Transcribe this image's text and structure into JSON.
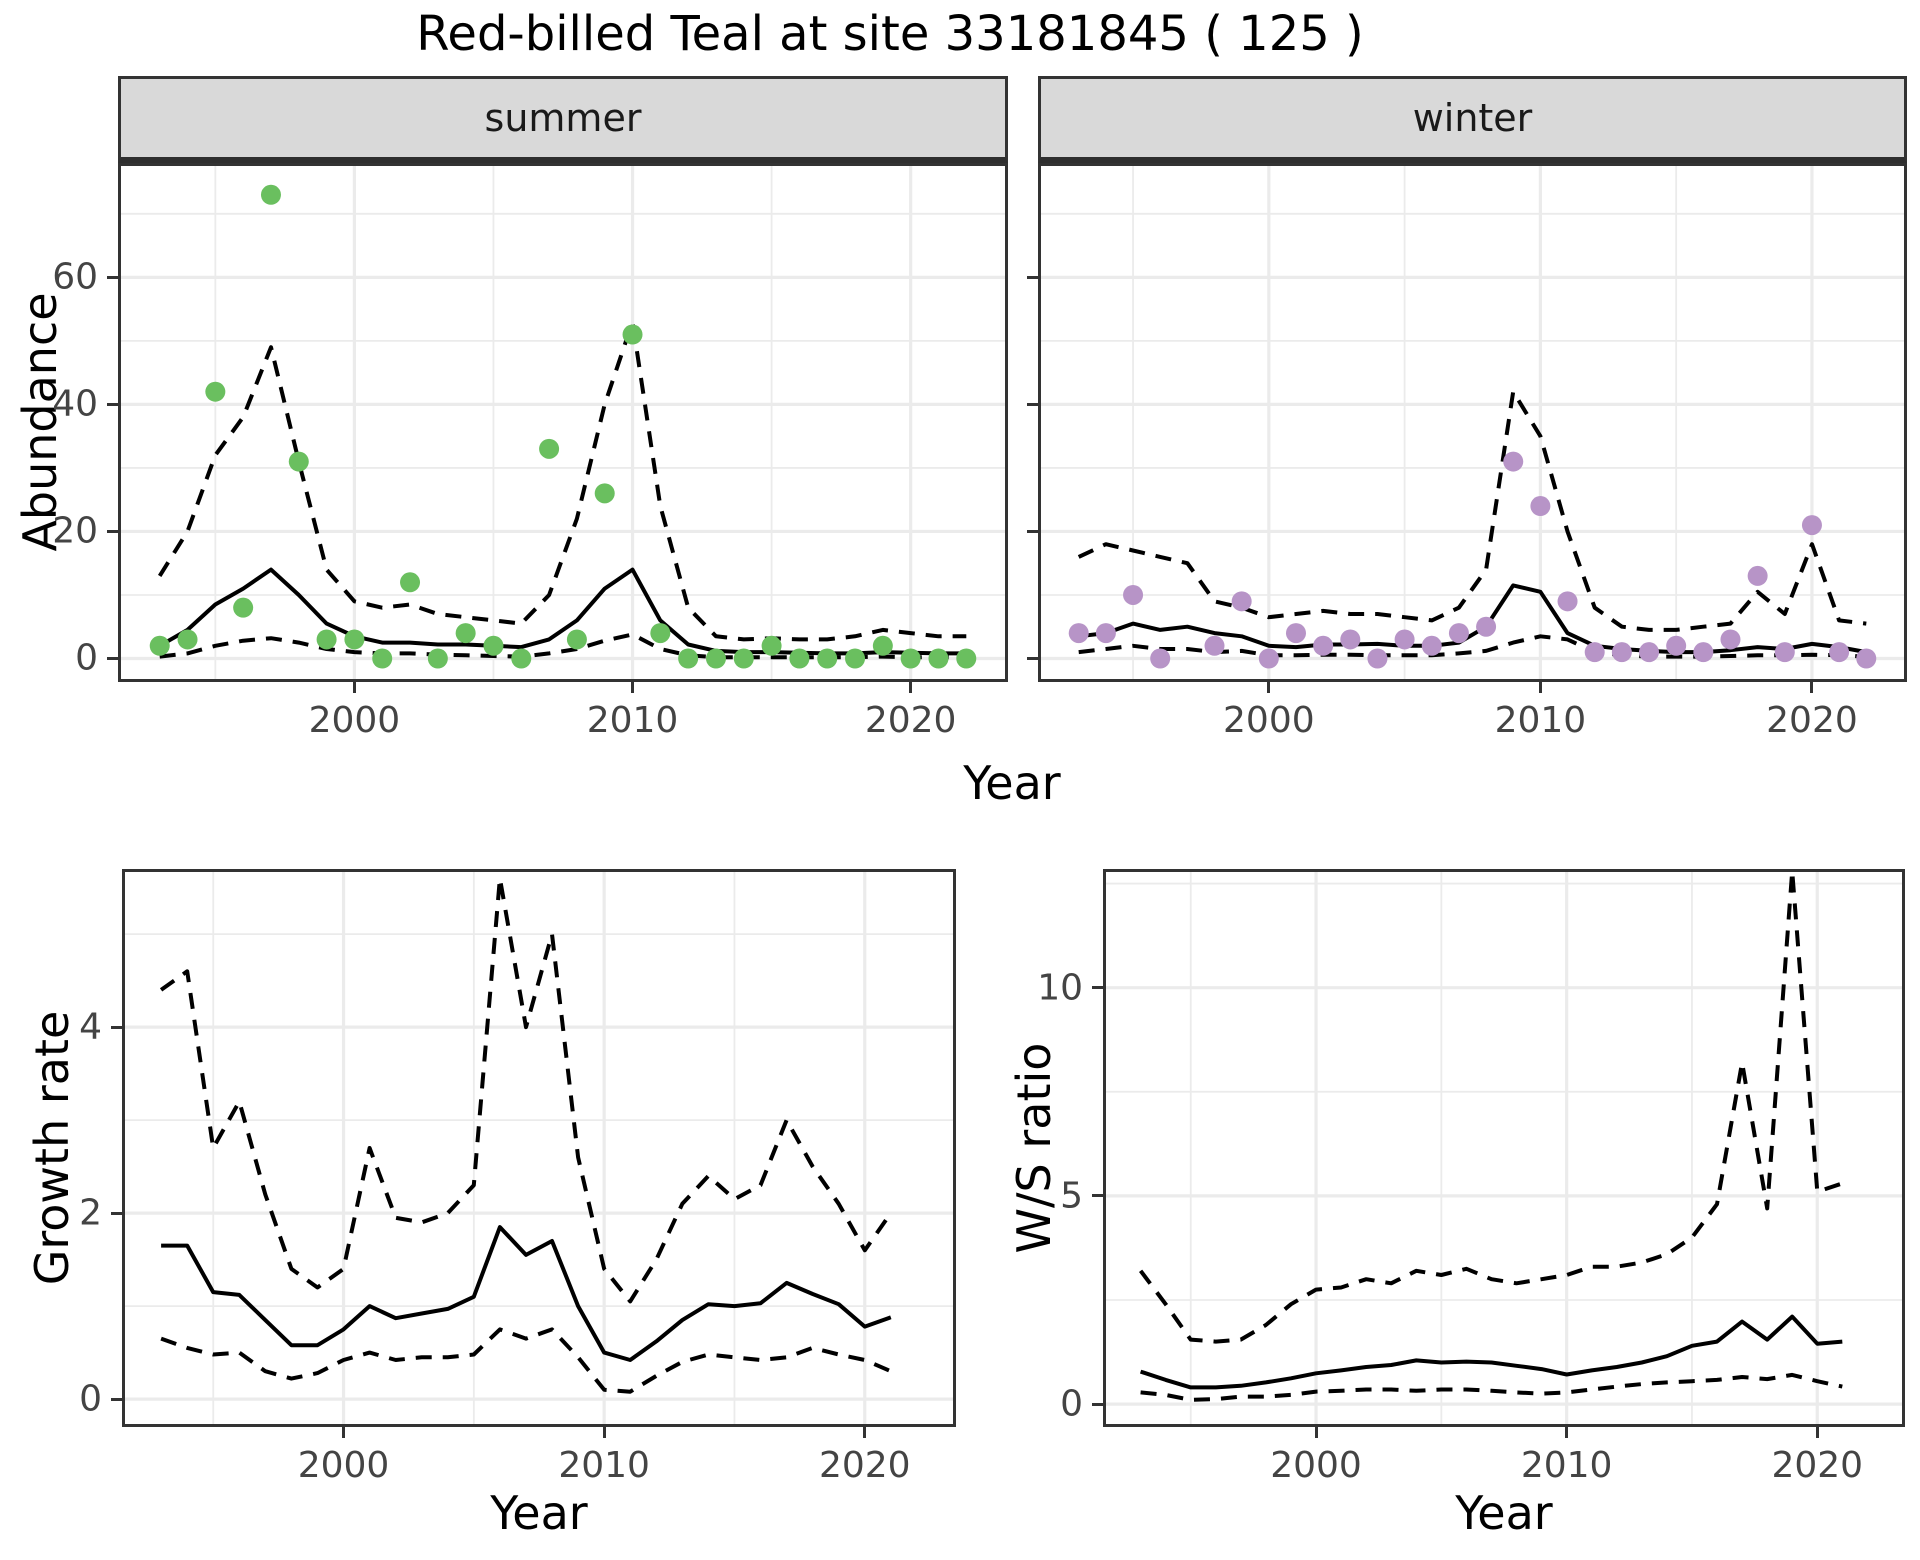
{
  "page": {
    "title": "Red-billed Teal at site 33181845 ( 125 )",
    "background": "#ffffff"
  },
  "colors": {
    "summer_point": "#6abf5f",
    "winter_point": "#b794c7",
    "line": "#000000",
    "strip_bg": "#d9d9d9",
    "grid": "#ebebeb",
    "axis_text": "#444444",
    "panel_border": "#333333"
  },
  "chart_data": [
    {
      "id": "abundance-summer",
      "type": "line",
      "facet": "summer",
      "xlabel": "Year",
      "ylabel": "Abundance",
      "xlim": [
        1991.5,
        2023.5
      ],
      "ylim": [
        -3.7,
        78.0
      ],
      "xticks_major": [
        2000,
        2010,
        2020
      ],
      "xticks_minor": [
        1995,
        2005,
        2015
      ],
      "yticks_major": [
        0,
        20,
        40,
        60
      ],
      "yticks_minor": [
        10,
        30,
        50,
        70
      ],
      "grid": true,
      "legend": "none",
      "x": [
        1993,
        1994,
        1995,
        1996,
        1997,
        1998,
        1999,
        2000,
        2001,
        2002,
        2003,
        2004,
        2005,
        2006,
        2007,
        2008,
        2009,
        2010,
        2011,
        2012,
        2013,
        2014,
        2015,
        2016,
        2017,
        2018,
        2019,
        2020,
        2021,
        2022
      ],
      "points": {
        "name": "observed counts",
        "color": "#6abf5f",
        "values": [
          2,
          3,
          42,
          8,
          73,
          31,
          3,
          3,
          0,
          12,
          0,
          4,
          2,
          0,
          33,
          3,
          26,
          51,
          4,
          0,
          0,
          0,
          2,
          0,
          0,
          0,
          2,
          0,
          0,
          0
        ]
      },
      "series": [
        {
          "name": "upper 95% CI",
          "style": "dashed",
          "values": [
            13,
            20,
            32,
            38,
            49,
            31,
            14,
            9,
            8,
            8.5,
            7,
            6.5,
            6,
            5.5,
            10,
            22,
            40,
            53,
            24,
            8,
            3.5,
            3,
            3.2,
            3,
            3,
            3.5,
            4.5,
            4,
            3.5,
            3.5
          ]
        },
        {
          "name": "lower 95% CI",
          "style": "dashed",
          "values": [
            0.3,
            0.8,
            2,
            2.8,
            3.2,
            2.5,
            1.5,
            1,
            0.8,
            0.8,
            0.6,
            0.5,
            0.4,
            0.3,
            0.8,
            1.5,
            2.8,
            3.8,
            1.5,
            0.5,
            0.2,
            0.2,
            0.2,
            0.2,
            0.2,
            0.2,
            0.3,
            0.2,
            0.2,
            0.2
          ]
        },
        {
          "name": "fitted abundance",
          "style": "solid",
          "values": [
            2,
            4.5,
            8.5,
            11,
            14,
            10,
            5.5,
            3.5,
            2.5,
            2.5,
            2.2,
            2.2,
            2,
            1.8,
            3,
            6,
            11,
            14,
            6,
            2.2,
            1.2,
            1,
            1,
            0.9,
            0.8,
            0.8,
            1,
            0.9,
            0.8,
            0.8
          ]
        }
      ]
    },
    {
      "id": "abundance-winter",
      "type": "line",
      "facet": "winter",
      "xlabel": "Year",
      "ylabel": "Abundance",
      "xlim": [
        1991.5,
        2023.5
      ],
      "ylim": [
        -3.7,
        78.0
      ],
      "xticks_major": [
        2000,
        2010,
        2020
      ],
      "xticks_minor": [
        1995,
        2005,
        2015
      ],
      "yticks_major": [
        0,
        20,
        40,
        60
      ],
      "yticks_minor": [
        10,
        30,
        50,
        70
      ],
      "grid": true,
      "legend": "none",
      "x": [
        1993,
        1994,
        1995,
        1996,
        1997,
        1998,
        1999,
        2000,
        2001,
        2002,
        2003,
        2004,
        2005,
        2006,
        2007,
        2008,
        2009,
        2010,
        2011,
        2012,
        2013,
        2014,
        2015,
        2016,
        2017,
        2018,
        2019,
        2020,
        2021,
        2022
      ],
      "points": {
        "name": "observed counts",
        "color": "#b794c7",
        "values": [
          4,
          4,
          10,
          0,
          null,
          2,
          9,
          0,
          4,
          2,
          3,
          0,
          3,
          2,
          4,
          5,
          31,
          24,
          9,
          1,
          1,
          1,
          2,
          1,
          3,
          13,
          1,
          21,
          1,
          0
        ]
      },
      "series": [
        {
          "name": "upper 95% CI",
          "style": "dashed",
          "values": [
            16,
            18,
            17,
            16,
            15,
            9,
            8,
            6.5,
            7,
            7.5,
            7,
            7,
            6.5,
            6,
            8,
            14,
            42,
            35,
            20,
            8,
            5,
            4.5,
            4.5,
            5,
            5.5,
            10.5,
            7,
            18,
            6,
            5.5
          ]
        },
        {
          "name": "lower 95% CI",
          "style": "dashed",
          "values": [
            1,
            1.5,
            2,
            1.5,
            1.5,
            1,
            1.2,
            0.5,
            0.5,
            0.6,
            0.6,
            0.5,
            0.5,
            0.5,
            0.8,
            1.2,
            2.5,
            3.5,
            3,
            1,
            0.5,
            0.3,
            0.3,
            0.3,
            0.4,
            0.5,
            0.5,
            0.6,
            0.5,
            0.3
          ]
        },
        {
          "name": "fitted abundance",
          "style": "solid",
          "values": [
            3.5,
            4,
            5.5,
            4.5,
            5,
            4,
            3.5,
            2,
            1.8,
            2.2,
            2.2,
            2.3,
            2,
            2,
            2.5,
            5,
            11.5,
            10.5,
            4,
            2,
            1.5,
            1.2,
            1,
            1,
            1.3,
            1.8,
            1.5,
            2.3,
            1.8,
            1
          ]
        }
      ]
    },
    {
      "id": "growth-rate",
      "type": "line",
      "facet": null,
      "xlabel": "Year",
      "ylabel": "Growth rate",
      "xlim": [
        1991.5,
        2023.5
      ],
      "ylim": [
        -0.3,
        5.7
      ],
      "xticks_major": [
        2000,
        2010,
        2020
      ],
      "xticks_minor": [
        1995,
        2005,
        2015
      ],
      "yticks_major": [
        0,
        2,
        4
      ],
      "yticks_minor": [
        1,
        3,
        5
      ],
      "grid": true,
      "legend": "none",
      "x": [
        1993,
        1994,
        1995,
        1996,
        1997,
        1998,
        1999,
        2000,
        2001,
        2002,
        2003,
        2004,
        2005,
        2006,
        2007,
        2008,
        2009,
        2010,
        2011,
        2012,
        2013,
        2014,
        2015,
        2016,
        2017,
        2018,
        2019,
        2020,
        2021
      ],
      "points": null,
      "series": [
        {
          "name": "upper 95% CI",
          "style": "dashed",
          "values": [
            4.4,
            4.6,
            2.7,
            3.2,
            2.2,
            1.4,
            1.2,
            1.4,
            2.7,
            1.95,
            1.9,
            2.0,
            2.3,
            5.6,
            4.0,
            5.0,
            2.6,
            1.4,
            1.05,
            1.5,
            2.1,
            2.4,
            2.15,
            2.3,
            3.0,
            2.5,
            2.1,
            1.6,
            2.0
          ]
        },
        {
          "name": "lower 95% CI",
          "style": "dashed",
          "values": [
            0.65,
            0.55,
            0.48,
            0.5,
            0.3,
            0.22,
            0.28,
            0.42,
            0.5,
            0.42,
            0.45,
            0.45,
            0.48,
            0.75,
            0.65,
            0.75,
            0.45,
            0.1,
            0.08,
            0.25,
            0.4,
            0.48,
            0.45,
            0.42,
            0.45,
            0.55,
            0.48,
            0.42,
            0.3
          ]
        },
        {
          "name": "median growth rate",
          "style": "solid",
          "values": [
            1.65,
            1.65,
            1.15,
            1.12,
            0.85,
            0.58,
            0.58,
            0.75,
            1.0,
            0.87,
            0.92,
            0.97,
            1.1,
            1.85,
            1.55,
            1.7,
            1.0,
            0.5,
            0.42,
            0.62,
            0.85,
            1.02,
            1.0,
            1.03,
            1.25,
            1.13,
            1.02,
            0.78,
            0.88
          ]
        }
      ]
    },
    {
      "id": "ws-ratio",
      "type": "line",
      "facet": null,
      "xlabel": "Year",
      "ylabel": "W/S ratio",
      "xlim": [
        1991.5,
        2023.5
      ],
      "ylim": [
        -0.55,
        12.85
      ],
      "xticks_major": [
        2000,
        2010,
        2020
      ],
      "xticks_minor": [
        1995,
        2005,
        2015
      ],
      "yticks_major": [
        0,
        5,
        10
      ],
      "yticks_minor": [
        2.5,
        7.5,
        12.5
      ],
      "grid": true,
      "legend": "none",
      "x": [
        1993,
        1994,
        1995,
        1996,
        1997,
        1998,
        1999,
        2000,
        2001,
        2002,
        2003,
        2004,
        2005,
        2006,
        2007,
        2008,
        2009,
        2010,
        2011,
        2012,
        2013,
        2014,
        2015,
        2016,
        2017,
        2018,
        2019,
        2020,
        2021
      ],
      "points": null,
      "series": [
        {
          "name": "upper 95% CI",
          "style": "dashed",
          "values": [
            3.2,
            2.4,
            1.55,
            1.5,
            1.55,
            1.9,
            2.4,
            2.75,
            2.8,
            3.0,
            2.9,
            3.2,
            3.1,
            3.25,
            3.0,
            2.9,
            3.0,
            3.1,
            3.3,
            3.3,
            3.4,
            3.6,
            4.0,
            4.8,
            8.2,
            4.7,
            12.8,
            5.1,
            5.3
          ]
        },
        {
          "name": "lower 95% CI",
          "style": "dashed",
          "values": [
            0.28,
            0.22,
            0.1,
            0.12,
            0.18,
            0.18,
            0.22,
            0.3,
            0.32,
            0.35,
            0.35,
            0.32,
            0.35,
            0.35,
            0.32,
            0.28,
            0.25,
            0.28,
            0.35,
            0.42,
            0.48,
            0.52,
            0.55,
            0.58,
            0.65,
            0.6,
            0.7,
            0.55,
            0.42
          ]
        },
        {
          "name": "median W/S ratio",
          "style": "solid",
          "values": [
            0.78,
            0.58,
            0.4,
            0.4,
            0.44,
            0.52,
            0.62,
            0.74,
            0.81,
            0.89,
            0.94,
            1.05,
            1.0,
            1.02,
            1.0,
            0.92,
            0.84,
            0.71,
            0.81,
            0.89,
            1.0,
            1.15,
            1.4,
            1.5,
            1.98,
            1.55,
            2.1,
            1.45,
            1.5
          ]
        }
      ]
    }
  ]
}
